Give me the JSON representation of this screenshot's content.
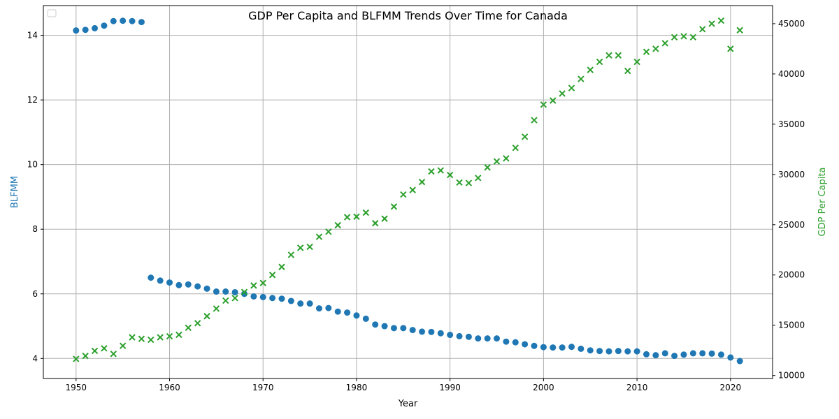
{
  "chart_data": {
    "type": "scatter",
    "title": "GDP Per Capita and BLFMM Trends Over Time for Canada",
    "xlabel": "Year",
    "ylabel_left": "BLFMM",
    "ylabel_right": "GDP Per Capita",
    "xlim": [
      1946.5,
      2024.5
    ],
    "ylim_left": [
      3.38,
      14.92
    ],
    "ylim_right": [
      9700,
      46800
    ],
    "x_ticks": [
      1950,
      1960,
      1970,
      1980,
      1990,
      2000,
      2010,
      2020
    ],
    "y_left_ticks": [
      4,
      6,
      8,
      10,
      12,
      14
    ],
    "y_right_ticks": [
      10000,
      15000,
      20000,
      25000,
      30000,
      35000,
      40000,
      45000
    ],
    "grid": true,
    "legend": "top-left, empty",
    "series": [
      {
        "axis": "left",
        "marker": "circle",
        "color": "#1f77b4",
        "x": [
          1950,
          1951,
          1952,
          1953,
          1954,
          1955,
          1956,
          1957,
          1958,
          1959,
          1960,
          1961,
          1962,
          1963,
          1964,
          1965,
          1966,
          1967,
          1968,
          1969,
          1970,
          1971,
          1972,
          1973,
          1974,
          1975,
          1976,
          1977,
          1978,
          1979,
          1980,
          1981,
          1982,
          1983,
          1984,
          1985,
          1986,
          1987,
          1988,
          1989,
          1990,
          1991,
          1992,
          1993,
          1994,
          1995,
          1996,
          1997,
          1998,
          1999,
          2000,
          2001,
          2002,
          2003,
          2004,
          2005,
          2006,
          2007,
          2008,
          2009,
          2010,
          2011,
          2012,
          2013,
          2014,
          2015,
          2016,
          2017,
          2018,
          2019,
          2020,
          2021
        ],
        "values": [
          14.15,
          14.17,
          14.22,
          14.3,
          14.44,
          14.45,
          14.44,
          14.41,
          6.5,
          6.41,
          6.35,
          6.27,
          6.29,
          6.23,
          6.16,
          6.07,
          6.07,
          6.05,
          6.0,
          5.92,
          5.9,
          5.87,
          5.85,
          5.78,
          5.7,
          5.7,
          5.55,
          5.56,
          5.45,
          5.42,
          5.33,
          5.23,
          5.05,
          5.0,
          4.94,
          4.94,
          4.88,
          4.83,
          4.82,
          4.78,
          4.73,
          4.69,
          4.67,
          4.62,
          4.62,
          4.62,
          4.52,
          4.5,
          4.44,
          4.39,
          4.35,
          4.34,
          4.34,
          4.36,
          4.3,
          4.25,
          4.23,
          4.22,
          4.23,
          4.22,
          4.22,
          4.13,
          4.1,
          4.16,
          4.08,
          4.12,
          4.16,
          4.16,
          4.15,
          4.12,
          4.03,
          3.92
        ]
      },
      {
        "axis": "right",
        "marker": "x",
        "color": "#2ca02c",
        "x": [
          1950,
          1951,
          1952,
          1953,
          1954,
          1955,
          1956,
          1957,
          1958,
          1959,
          1960,
          1961,
          1962,
          1963,
          1964,
          1965,
          1966,
          1967,
          1968,
          1969,
          1970,
          1971,
          1972,
          1973,
          1974,
          1975,
          1976,
          1977,
          1978,
          1979,
          1980,
          1981,
          1982,
          1983,
          1984,
          1985,
          1986,
          1987,
          1988,
          1989,
          1990,
          1991,
          1992,
          1993,
          1994,
          1995,
          1996,
          1997,
          1998,
          1999,
          2000,
          2001,
          2002,
          2003,
          2004,
          2005,
          2006,
          2007,
          2008,
          2009,
          2010,
          2011,
          2012,
          2013,
          2014,
          2015,
          2016,
          2017,
          2018,
          2019,
          2020,
          2021
        ],
        "values": [
          11650,
          11950,
          12450,
          12700,
          12150,
          12950,
          13800,
          13650,
          13550,
          13800,
          13900,
          14050,
          14750,
          15200,
          15900,
          16650,
          17450,
          17700,
          18300,
          18950,
          19200,
          20000,
          20800,
          22000,
          22700,
          22800,
          23800,
          24300,
          24950,
          25750,
          25800,
          26200,
          25150,
          25600,
          26800,
          28000,
          28450,
          29250,
          30300,
          30400,
          29950,
          29200,
          29150,
          29650,
          30700,
          31300,
          31600,
          32650,
          33750,
          35400,
          36950,
          37350,
          38050,
          38600,
          39500,
          40400,
          41200,
          41850,
          41850,
          40300,
          41200,
          42200,
          42500,
          43050,
          43650,
          43750,
          43650,
          44450,
          45000,
          45300,
          42500,
          44350
        ]
      }
    ]
  }
}
